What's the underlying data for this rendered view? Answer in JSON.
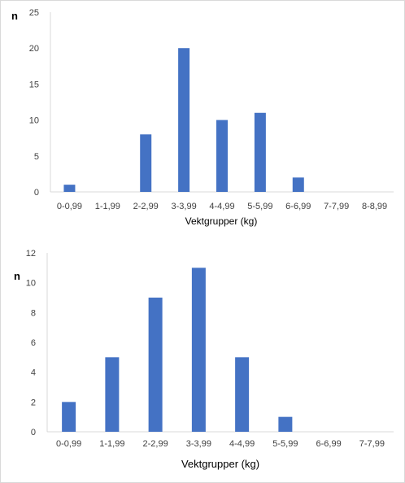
{
  "chart_data": [
    {
      "type": "bar",
      "ylabel": "n",
      "xlabel": "Vektgrupper  (kg)",
      "categories": [
        "0-0,99",
        "1-1,99",
        "2-2,99",
        "3-3,99",
        "4-4,99",
        "5-5,99",
        "6-6,99",
        "7-7,99",
        "8-8,99"
      ],
      "values": [
        1,
        0,
        8,
        20,
        10,
        11,
        2,
        0,
        0
      ],
      "ylim": [
        0,
        25
      ],
      "yticks": [
        0,
        5,
        10,
        15,
        20,
        25
      ],
      "grid": false,
      "color": "#4472C4"
    },
    {
      "type": "bar",
      "ylabel": "n",
      "xlabel": "Vektgrupper (kg)",
      "categories": [
        "0-0,99",
        "1-1,99",
        "2-2,99",
        "3-3,99",
        "4-4,99",
        "5-5,99",
        "6-6,99",
        "7-7,99"
      ],
      "values": [
        2,
        5,
        9,
        11,
        5,
        1,
        0,
        0
      ],
      "ylim": [
        0,
        12
      ],
      "yticks": [
        0,
        2,
        4,
        6,
        8,
        10,
        12
      ],
      "grid": false,
      "color": "#4472C4"
    }
  ]
}
